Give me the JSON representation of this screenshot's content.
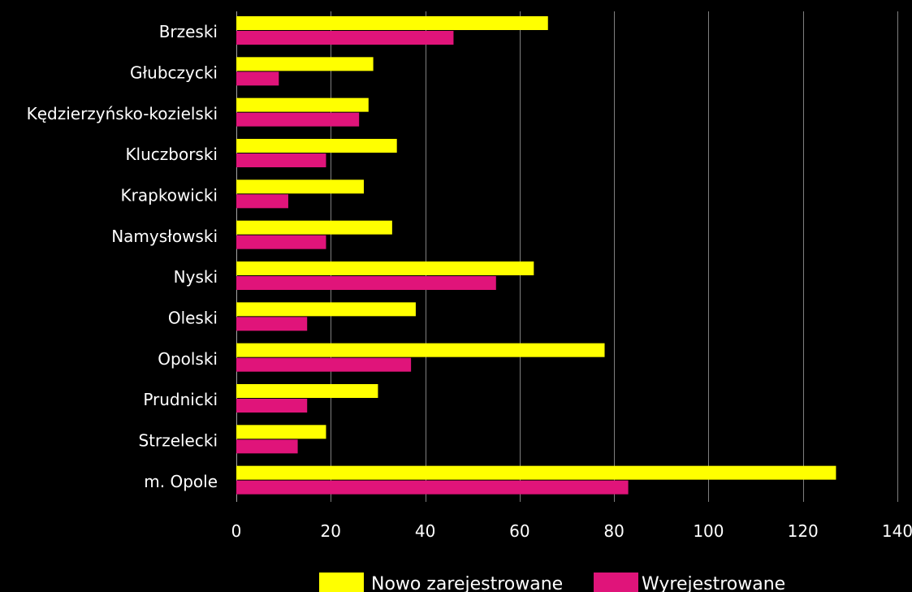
{
  "chart_data": {
    "type": "bar",
    "orientation": "horizontal",
    "categories": [
      "Brzeski",
      "Głubczycki",
      "Kędzierzyńsko-kozielski",
      "Kluczborski",
      "Krapkowicki",
      "Namysłowski",
      "Nyski",
      "Oleski",
      "Opolski",
      "Prudnicki",
      "Strzelecki",
      "m. Opole"
    ],
    "series": [
      {
        "name": "Nowo zarejestrowane",
        "color": "#ffff00",
        "values": [
          66,
          29,
          28,
          34,
          27,
          33,
          63,
          38,
          78,
          30,
          19,
          127
        ]
      },
      {
        "name": "Wyrejestrowane",
        "color": "#e0147a",
        "values": [
          46,
          9,
          26,
          19,
          11,
          19,
          55,
          15,
          37,
          15,
          13,
          83
        ]
      }
    ],
    "xlim": [
      0,
      140
    ],
    "xticks": [
      "0",
      "20",
      "40",
      "60",
      "80",
      "100",
      "120",
      "140"
    ],
    "title": "",
    "xlabel": "",
    "ylabel": "",
    "grid": "vertical",
    "legend_position": "bottom"
  }
}
